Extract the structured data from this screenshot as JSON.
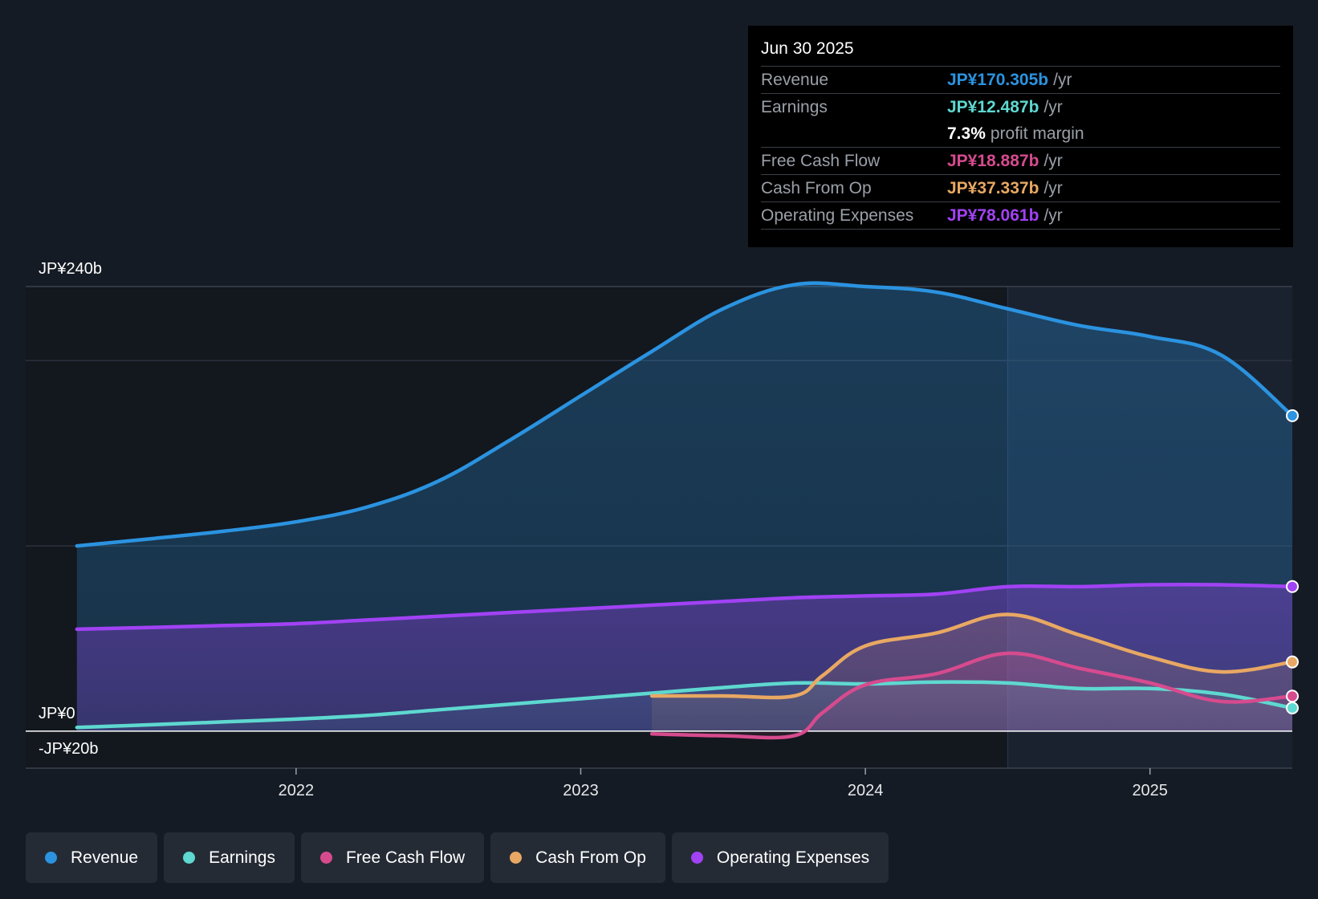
{
  "chart_data": {
    "type": "area",
    "ylabel_unit": "JP¥ billions",
    "y_axis_labels": {
      "top": "JP¥240b",
      "zero": "JP¥0",
      "bottom": "-JP¥20b"
    },
    "ylim": [
      -20,
      240
    ],
    "x_tick_labels": [
      "2022",
      "2023",
      "2024",
      "2025"
    ],
    "x_ticks": [
      2022.0,
      2023.0,
      2024.0,
      2025.0
    ],
    "xlim": [
      2021.05,
      2025.5
    ],
    "forecast_start": 2024.5,
    "series": [
      {
        "name": "Revenue",
        "color": "#2b93e0",
        "x": [
          2021.23,
          2021.5,
          2021.75,
          2022.0,
          2022.25,
          2022.5,
          2022.75,
          2023.0,
          2023.25,
          2023.5,
          2023.75,
          2024.0,
          2024.25,
          2024.5,
          2024.75,
          2025.0,
          2025.25,
          2025.5
        ],
        "values": [
          100,
          104,
          108,
          113,
          121,
          135,
          157,
          181,
          205,
          228,
          241,
          240,
          237,
          228,
          219,
          213,
          203,
          170.305
        ]
      },
      {
        "name": "Operating Expenses",
        "color": "#a142f4",
        "x": [
          2021.23,
          2021.5,
          2021.75,
          2022.0,
          2022.25,
          2022.5,
          2022.75,
          2023.0,
          2023.25,
          2023.5,
          2023.75,
          2024.0,
          2024.25,
          2024.5,
          2024.75,
          2025.0,
          2025.25,
          2025.5
        ],
        "values": [
          55,
          56,
          57,
          58,
          60,
          62,
          64,
          66,
          68,
          70,
          72,
          73,
          74,
          78,
          78,
          79,
          79,
          78.061
        ]
      },
      {
        "name": "Earnings",
        "color": "#5ed8d0",
        "x": [
          2021.23,
          2021.5,
          2021.75,
          2022.0,
          2022.25,
          2022.5,
          2022.75,
          2023.0,
          2023.25,
          2023.5,
          2023.75,
          2024.0,
          2024.25,
          2024.5,
          2024.75,
          2025.0,
          2025.25,
          2025.5
        ],
        "values": [
          2,
          3.5,
          5,
          6.5,
          8.5,
          11.5,
          14.5,
          17.5,
          20.5,
          23.5,
          26,
          25.5,
          26.5,
          26,
          23,
          23,
          20,
          12.487
        ]
      },
      {
        "name": "Cash From Op",
        "color": "#e8a863",
        "x": [
          2023.25,
          2023.5,
          2023.75,
          2023.85,
          2024.0,
          2024.25,
          2024.5,
          2024.75,
          2025.0,
          2025.25,
          2025.5
        ],
        "values": [
          19,
          19,
          19,
          30,
          46,
          53,
          63,
          52,
          40,
          32,
          37.337
        ]
      },
      {
        "name": "Free Cash Flow",
        "color": "#d64b8e",
        "x": [
          2023.25,
          2023.5,
          2023.75,
          2023.85,
          2024.0,
          2024.25,
          2024.5,
          2024.75,
          2025.0,
          2025.25,
          2025.5
        ],
        "values": [
          -1.5,
          -2.5,
          -2.5,
          10,
          25,
          31,
          42,
          34,
          26,
          16,
          18.887
        ]
      }
    ]
  },
  "tooltip": {
    "date": "Jun 30 2025",
    "rows": [
      {
        "name": "Revenue",
        "value": "JP¥170.305b",
        "unit": "/yr",
        "color": "#2b93e0"
      },
      {
        "name": "Earnings",
        "value": "JP¥12.487b",
        "unit": "/yr",
        "color": "#5ed8d0"
      },
      {
        "name": "",
        "value": "7.3%",
        "unit": "profit margin",
        "color": "#ffffff"
      },
      {
        "name": "Free Cash Flow",
        "value": "JP¥18.887b",
        "unit": "/yr",
        "color": "#d64b8e"
      },
      {
        "name": "Cash From Op",
        "value": "JP¥37.337b",
        "unit": "/yr",
        "color": "#e8a863"
      },
      {
        "name": "Operating Expenses",
        "value": "JP¥78.061b",
        "unit": "/yr",
        "color": "#a142f4"
      }
    ]
  },
  "legend": [
    {
      "label": "Revenue",
      "color": "#2b93e0"
    },
    {
      "label": "Earnings",
      "color": "#5ed8d0"
    },
    {
      "label": "Free Cash Flow",
      "color": "#d64b8e"
    },
    {
      "label": "Cash From Op",
      "color": "#e8a863"
    },
    {
      "label": "Operating Expenses",
      "color": "#a142f4"
    }
  ]
}
